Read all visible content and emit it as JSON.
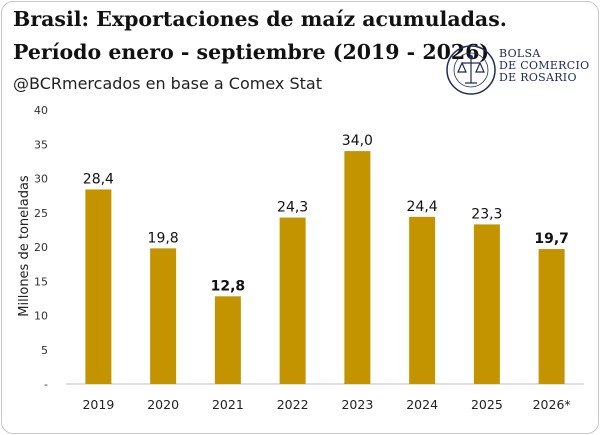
{
  "header": {
    "title_line1": "Brasil: Exportaciones de maíz acumuladas.",
    "title_line2": "Período enero - septiembre (2019 - 2026)",
    "subtitle": "@BCRmercados en base a Comex Stat"
  },
  "logo": {
    "text": "BOLSA\nDE COMERCIO\nDE ROSARIO",
    "seal_text": "BOLSA DE COMERCIO DE ROSARIO"
  },
  "colors": {
    "bar": "#c39400",
    "text": "#111111"
  },
  "chart_data": {
    "type": "bar",
    "categories": [
      "2019",
      "2020",
      "2021",
      "2022",
      "2023",
      "2024",
      "2025",
      "2026*"
    ],
    "values": [
      28.4,
      19.8,
      12.8,
      24.3,
      34.0,
      24.4,
      23.3,
      19.7
    ],
    "value_labels": [
      "28,4",
      "19,8",
      "12,8",
      "24,3",
      "34,0",
      "24,4",
      "23,3",
      "19,7"
    ],
    "bold_labels": [
      false,
      false,
      true,
      false,
      false,
      false,
      false,
      true
    ],
    "ylabel": "Millones de toneladas",
    "ylim": [
      0,
      40
    ],
    "yticks": [
      0,
      5,
      10,
      15,
      20,
      25,
      30,
      35,
      40
    ],
    "ytick_labels": [
      "-",
      "5",
      "10",
      "15",
      "20",
      "25",
      "30",
      "35",
      "40"
    ],
    "grid": false
  }
}
